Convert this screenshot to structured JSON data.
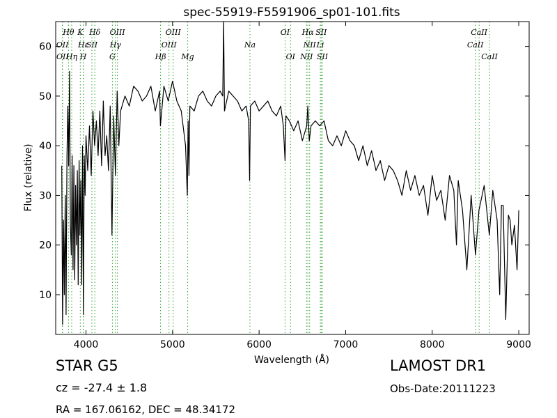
{
  "chart_data": {
    "type": "line",
    "title": "spec-55919-F5591906_sp01-101.fits",
    "xlabel": "Wavelength (Å)",
    "ylabel": "Flux (relative)",
    "xlim": [
      3650,
      9120
    ],
    "ylim": [
      2,
      65
    ],
    "xticks": [
      4000,
      5000,
      6000,
      7000,
      8000,
      9000
    ],
    "yticks": [
      10,
      20,
      30,
      40,
      50,
      60
    ],
    "line_color": "#000000",
    "marker_color": "#2ca02c",
    "series": [
      {
        "x": [
          3720,
          3730,
          3740,
          3750,
          3760,
          3770,
          3780,
          3790,
          3800,
          3810,
          3820,
          3830,
          3840,
          3850,
          3860,
          3870,
          3880,
          3890,
          3900,
          3910,
          3920,
          3930,
          3940,
          3950,
          3960,
          3970,
          3980,
          3990,
          4000,
          4020,
          4040,
          4060,
          4080,
          4100,
          4120,
          4140,
          4160,
          4180,
          4200,
          4220,
          4240,
          4260,
          4280,
          4300,
          4320,
          4340,
          4360,
          4380,
          4400,
          4450,
          4500,
          4550,
          4600,
          4650,
          4700,
          4750,
          4800,
          4850,
          4860,
          4900,
          4950,
          5000,
          5050,
          5100,
          5150,
          5170,
          5180,
          5190,
          5200,
          5250,
          5300,
          5350,
          5400,
          5450,
          5500,
          5550,
          5580,
          5590,
          5600,
          5650,
          5700,
          5750,
          5800,
          5850,
          5880,
          5890,
          5900,
          5950,
          6000,
          6050,
          6100,
          6150,
          6200,
          6250,
          6280,
          6300,
          6310,
          6350,
          6400,
          6450,
          6500,
          6550,
          6563,
          6580,
          6600,
          6650,
          6700,
          6750,
          6800,
          6850,
          6900,
          6950,
          7000,
          7050,
          7100,
          7150,
          7200,
          7250,
          7300,
          7350,
          7400,
          7450,
          7500,
          7550,
          7600,
          7650,
          7700,
          7750,
          7800,
          7850,
          7900,
          7950,
          8000,
          8050,
          8100,
          8150,
          8200,
          8250,
          8280,
          8300,
          8350,
          8400,
          8450,
          8500,
          8540,
          8600,
          8660,
          8700,
          8750,
          8780,
          8800,
          8820,
          8850,
          8880,
          8900,
          8920,
          8950,
          8980,
          9000
        ],
        "y": [
          36,
          4,
          25,
          10,
          30,
          6,
          38,
          48,
          36,
          55,
          24,
          18,
          38,
          15,
          36,
          13,
          32,
          20,
          35,
          12,
          37,
          22,
          33,
          12,
          40,
          6,
          38,
          30,
          42,
          35,
          44,
          34,
          47,
          40,
          45,
          38,
          47,
          36,
          49,
          38,
          42,
          35,
          48,
          22,
          46,
          34,
          51,
          40,
          47,
          50,
          48,
          52,
          51,
          49,
          50,
          52,
          47,
          51,
          44,
          52,
          49,
          53,
          49,
          47,
          40,
          30,
          45,
          34,
          48,
          47,
          50,
          51,
          49,
          48,
          50,
          51,
          50,
          65,
          47,
          51,
          50,
          49,
          47,
          48,
          45,
          33,
          48,
          49,
          47,
          48,
          49,
          47,
          46,
          48,
          44,
          37,
          46,
          45,
          43,
          45,
          41,
          44,
          48,
          41,
          44,
          45,
          44,
          45,
          41,
          40,
          42,
          40,
          43,
          41,
          40,
          37,
          40,
          36,
          39,
          35,
          37,
          33,
          36,
          35,
          33,
          30,
          35,
          31,
          34,
          30,
          32,
          26,
          34,
          29,
          31,
          25,
          34,
          31,
          20,
          33,
          27,
          15,
          30,
          18,
          27,
          32,
          22,
          31,
          25,
          10,
          28,
          28,
          5,
          26,
          25,
          20,
          24,
          15,
          27
        ]
      }
    ],
    "lines": [
      {
        "name": "Hθ",
        "x": 3798,
        "row": 1
      },
      {
        "name": "OII",
        "x": 3727,
        "row": 2
      },
      {
        "name": "OII",
        "x": 3729,
        "row": 3
      },
      {
        "name": "K",
        "x": 3934,
        "row": 1
      },
      {
        "name": "Hη",
        "x": 3835,
        "row": 3
      },
      {
        "name": "Hε",
        "x": 3970,
        "row": 2
      },
      {
        "name": "SII",
        "x": 4068,
        "row": 2
      },
      {
        "name": "H",
        "x": 3968,
        "row": 3
      },
      {
        "name": "Hδ",
        "x": 4102,
        "row": 1
      },
      {
        "name": "OIII",
        "x": 4363,
        "row": 1
      },
      {
        "name": "Hγ",
        "x": 4340,
        "row": 2
      },
      {
        "name": "G",
        "x": 4305,
        "row": 3
      },
      {
        "name": "OIII",
        "x": 5007,
        "row": 1
      },
      {
        "name": "Hβ",
        "x": 4861,
        "row": 3
      },
      {
        "name": "OIII",
        "x": 4959,
        "row": 2
      },
      {
        "name": "Mg",
        "x": 5175,
        "row": 3
      },
      {
        "name": "Na",
        "x": 5894,
        "row": 2
      },
      {
        "name": "OI",
        "x": 6300,
        "row": 1
      },
      {
        "name": "OI",
        "x": 6363,
        "row": 3
      },
      {
        "name": "Hα",
        "x": 6563,
        "row": 1
      },
      {
        "name": "SII",
        "x": 6717,
        "row": 1
      },
      {
        "name": "NII",
        "x": 6584,
        "row": 2
      },
      {
        "name": "Li",
        "x": 6707,
        "row": 2
      },
      {
        "name": "NII",
        "x": 6548,
        "row": 3
      },
      {
        "name": "SII",
        "x": 6731,
        "row": 3
      },
      {
        "name": "CaII",
        "x": 8542,
        "row": 1
      },
      {
        "name": "CaII",
        "x": 8498,
        "row": 2
      },
      {
        "name": "CaII",
        "x": 8662,
        "row": 3
      }
    ]
  },
  "info": {
    "class_text": "STAR   G5",
    "cz_text": "cz = -27.4 ± 1.8",
    "radec_text": "RA = 167.06162, DEC = 48.34172",
    "survey_text": "LAMOST DR1",
    "obsdate_text": "Obs-Date:20111223"
  }
}
